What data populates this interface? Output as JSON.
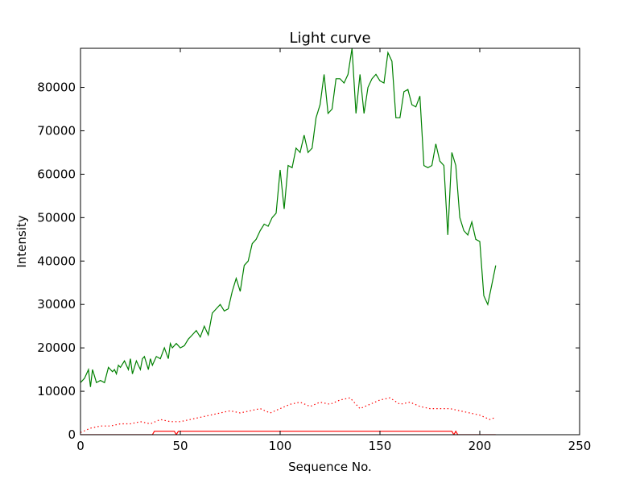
{
  "chart_data": {
    "type": "line",
    "title": "Light curve",
    "xlabel": "Sequence No.",
    "ylabel": "Intensity",
    "xlim": [
      0,
      250
    ],
    "ylim": [
      0,
      89000
    ],
    "xticks": [
      0,
      50,
      100,
      150,
      200,
      250
    ],
    "yticks": [
      0,
      10000,
      20000,
      30000,
      40000,
      50000,
      60000,
      70000,
      80000
    ],
    "grid": false,
    "legend": "none",
    "series": [
      {
        "color": "#008000",
        "style": "solid",
        "x": [
          0,
          2,
          4,
          5,
          6,
          7,
          8,
          10,
          12,
          14,
          16,
          17,
          18,
          19,
          20,
          22,
          24,
          25,
          26,
          28,
          30,
          31,
          32,
          34,
          35,
          36,
          38,
          40,
          42,
          44,
          45,
          46,
          48,
          50,
          52,
          54,
          56,
          58,
          60,
          62,
          64,
          66,
          68,
          70,
          72,
          74,
          76,
          78,
          80,
          82,
          84,
          86,
          88,
          90,
          92,
          94,
          96,
          98,
          100,
          102,
          104,
          106,
          108,
          110,
          112,
          114,
          116,
          118,
          120,
          122,
          124,
          126,
          128,
          130,
          132,
          134,
          136,
          138,
          140,
          142,
          144,
          146,
          148,
          150,
          152,
          154,
          156,
          158,
          160,
          162,
          164,
          166,
          168,
          170,
          172,
          174,
          176,
          178,
          180,
          182,
          184,
          186,
          188,
          190,
          192,
          194,
          196,
          198,
          200,
          202,
          204,
          206,
          208
        ],
        "y": [
          12000,
          13000,
          15000,
          11000,
          15000,
          13500,
          12000,
          12500,
          12000,
          15500,
          14500,
          15000,
          14000,
          16000,
          15500,
          17000,
          15000,
          17500,
          14000,
          17000,
          15000,
          17500,
          18000,
          15000,
          17500,
          16000,
          18000,
          17500,
          20000,
          17500,
          21000,
          20000,
          21000,
          20000,
          20500,
          22000,
          23000,
          24000,
          22500,
          25000,
          23000,
          28000,
          29000,
          30000,
          28500,
          29000,
          33000,
          36000,
          33000,
          39000,
          40000,
          44000,
          45000,
          47000,
          48500,
          48000,
          50000,
          51000,
          61000,
          52000,
          62000,
          61500,
          66000,
          65000,
          69000,
          65000,
          66000,
          73000,
          76000,
          83000,
          74000,
          75000,
          82000,
          82000,
          81000,
          83000,
          89000,
          74000,
          83000,
          74000,
          80000,
          82000,
          83000,
          81500,
          81000,
          88000,
          86000,
          73000,
          73000,
          79000,
          79500,
          76000,
          75500,
          78000,
          62000,
          61500,
          62000,
          67000,
          63000,
          62000,
          46000,
          65000,
          62000,
          50000,
          47000,
          46000,
          49000,
          45000,
          44500,
          32000,
          30000,
          34500,
          39000
        ]
      },
      {
        "color": "#ff0000",
        "style": "dotted",
        "x": [
          0,
          5,
          10,
          15,
          20,
          25,
          30,
          35,
          40,
          45,
          50,
          55,
          60,
          65,
          70,
          75,
          80,
          85,
          90,
          95,
          100,
          105,
          110,
          115,
          120,
          125,
          130,
          135,
          140,
          145,
          150,
          155,
          160,
          165,
          170,
          175,
          180,
          185,
          190,
          195,
          200,
          205,
          208
        ],
        "y": [
          500,
          1500,
          2000,
          2000,
          2500,
          2500,
          3000,
          2500,
          3500,
          3000,
          3000,
          3500,
          4000,
          4500,
          5000,
          5500,
          5000,
          5500,
          6000,
          5000,
          6000,
          7000,
          7500,
          6500,
          7500,
          7000,
          8000,
          8500,
          6000,
          7000,
          8000,
          8500,
          7000,
          7500,
          6500,
          6000,
          6000,
          6000,
          5500,
          5000,
          4500,
          3500,
          4000
        ]
      },
      {
        "color": "#ff0000",
        "style": "solid",
        "x": [
          0,
          1,
          36,
          37,
          47,
          48,
          49,
          186,
          187,
          188,
          189,
          208
        ],
        "y": [
          0,
          0,
          0,
          800,
          800,
          0,
          800,
          800,
          0,
          800,
          0,
          0
        ]
      }
    ]
  }
}
